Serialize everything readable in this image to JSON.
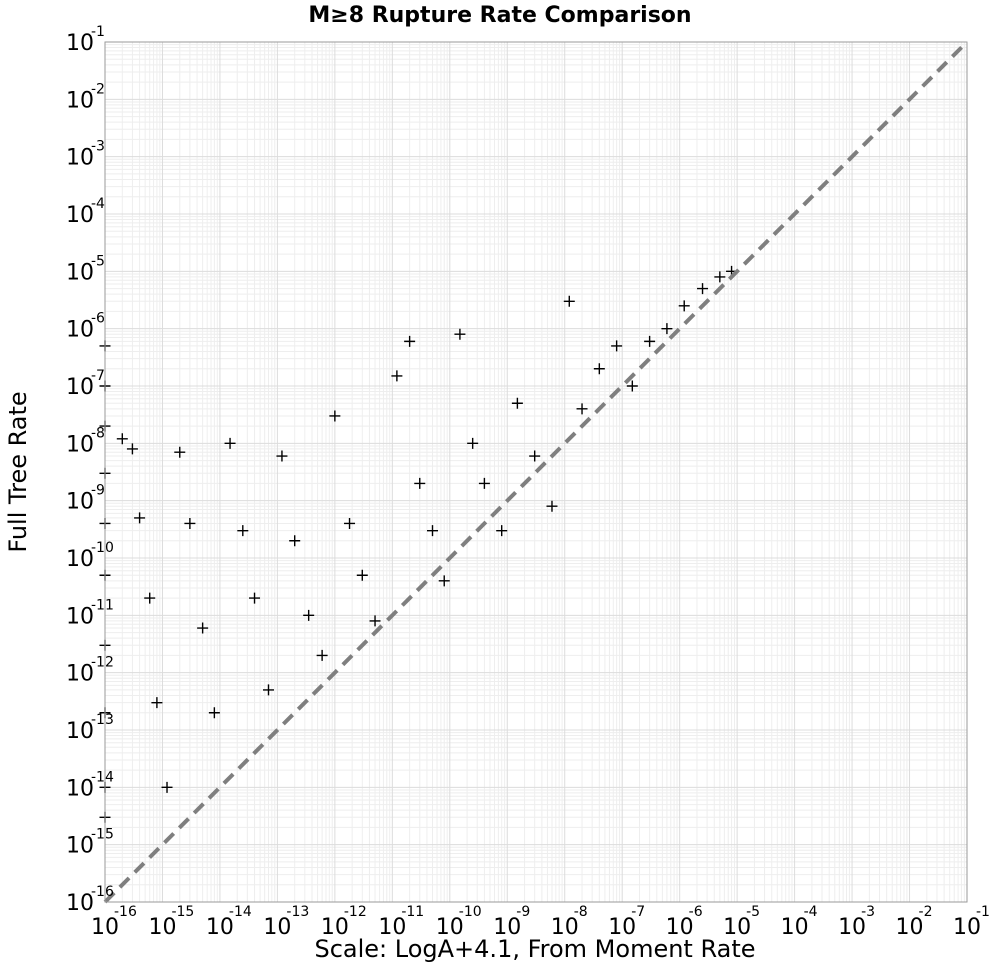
{
  "chart_data": {
    "type": "scatter",
    "title": "M≥8 Rupture Rate Comparison",
    "xlabel": "Scale: LogA+4.1, From Moment Rate",
    "ylabel": "Full Tree Rate",
    "xscale": "log",
    "yscale": "log",
    "xlim": [
      1e-16,
      0.1
    ],
    "ylim": [
      1e-16,
      0.1
    ],
    "grid": true,
    "marker": "+",
    "x_ticks": [
      {
        "base": "10",
        "exp": "-16"
      },
      {
        "base": "10",
        "exp": "-15"
      },
      {
        "base": "10",
        "exp": "-14"
      },
      {
        "base": "10",
        "exp": "-13"
      },
      {
        "base": "10",
        "exp": "-12"
      },
      {
        "base": "10",
        "exp": "-11"
      },
      {
        "base": "10",
        "exp": "-10"
      },
      {
        "base": "10",
        "exp": "-9"
      },
      {
        "base": "10",
        "exp": "-8"
      },
      {
        "base": "10",
        "exp": "-7"
      },
      {
        "base": "10",
        "exp": "-6"
      },
      {
        "base": "10",
        "exp": "-5"
      },
      {
        "base": "10",
        "exp": "-4"
      },
      {
        "base": "10",
        "exp": "-3"
      },
      {
        "base": "10",
        "exp": "-2"
      },
      {
        "base": "10",
        "exp": "-1"
      }
    ],
    "y_ticks": [
      {
        "base": "10",
        "exp": "-16"
      },
      {
        "base": "10",
        "exp": "-15"
      },
      {
        "base": "10",
        "exp": "-14"
      },
      {
        "base": "10",
        "exp": "-13"
      },
      {
        "base": "10",
        "exp": "-12"
      },
      {
        "base": "10",
        "exp": "-11"
      },
      {
        "base": "10",
        "exp": "-10"
      },
      {
        "base": "10",
        "exp": "-9"
      },
      {
        "base": "10",
        "exp": "-8"
      },
      {
        "base": "10",
        "exp": "-7"
      },
      {
        "base": "10",
        "exp": "-6"
      },
      {
        "base": "10",
        "exp": "-5"
      },
      {
        "base": "10",
        "exp": "-4"
      },
      {
        "base": "10",
        "exp": "-3"
      },
      {
        "base": "10",
        "exp": "-2"
      },
      {
        "base": "10",
        "exp": "-1"
      }
    ],
    "reference_line": {
      "name": "y = x",
      "style": "dashed",
      "color": "#7f7f7f",
      "from": [
        1e-16,
        1e-16
      ],
      "to": [
        0.1,
        0.1
      ]
    },
    "series": [
      {
        "name": "ruptures",
        "color": "#000000",
        "points": [
          [
            1e-16,
            5e-07
          ],
          [
            1e-16,
            1e-07
          ],
          [
            1e-16,
            2e-08
          ],
          [
            1e-16,
            3e-09
          ],
          [
            1e-16,
            4e-10
          ],
          [
            1e-16,
            5e-11
          ],
          [
            1e-16,
            3e-12
          ],
          [
            1e-16,
            2e-13
          ],
          [
            1e-16,
            1e-14
          ],
          [
            1e-16,
            3e-15
          ],
          [
            2e-16,
            1.2e-08
          ],
          [
            3e-16,
            8e-09
          ],
          [
            4e-16,
            5e-10
          ],
          [
            6e-16,
            2e-11
          ],
          [
            8e-16,
            3e-13
          ],
          [
            1.2e-15,
            1e-14
          ],
          [
            2e-15,
            7e-09
          ],
          [
            3e-15,
            4e-10
          ],
          [
            5e-15,
            6e-12
          ],
          [
            8e-15,
            2e-13
          ],
          [
            1.5e-14,
            1e-08
          ],
          [
            2.5e-14,
            3e-10
          ],
          [
            4e-14,
            2e-11
          ],
          [
            7e-14,
            5e-13
          ],
          [
            1.2e-13,
            6e-09
          ],
          [
            2e-13,
            2e-10
          ],
          [
            3.5e-13,
            1e-11
          ],
          [
            6e-13,
            2e-12
          ],
          [
            1e-12,
            3e-08
          ],
          [
            1.8e-12,
            4e-10
          ],
          [
            3e-12,
            5e-11
          ],
          [
            5e-12,
            8e-12
          ],
          [
            1.2e-11,
            1.5e-07
          ],
          [
            2e-11,
            6e-07
          ],
          [
            3e-11,
            2e-09
          ],
          [
            5e-11,
            3e-10
          ],
          [
            8e-11,
            4e-11
          ],
          [
            1.5e-10,
            8e-07
          ],
          [
            2.5e-10,
            1e-08
          ],
          [
            4e-10,
            2e-09
          ],
          [
            8e-10,
            3e-10
          ],
          [
            1.5e-09,
            5e-08
          ],
          [
            3e-09,
            6e-09
          ],
          [
            6e-09,
            8e-10
          ],
          [
            1.2e-08,
            3e-06
          ],
          [
            2e-08,
            4e-08
          ],
          [
            4e-08,
            2e-07
          ],
          [
            8e-08,
            5e-07
          ],
          [
            1.5e-07,
            1e-07
          ],
          [
            3e-07,
            6e-07
          ],
          [
            6e-07,
            1e-06
          ],
          [
            1.2e-06,
            2.5e-06
          ],
          [
            2.5e-06,
            5e-06
          ],
          [
            5e-06,
            8e-06
          ],
          [
            8e-06,
            1e-05
          ]
        ]
      }
    ]
  }
}
